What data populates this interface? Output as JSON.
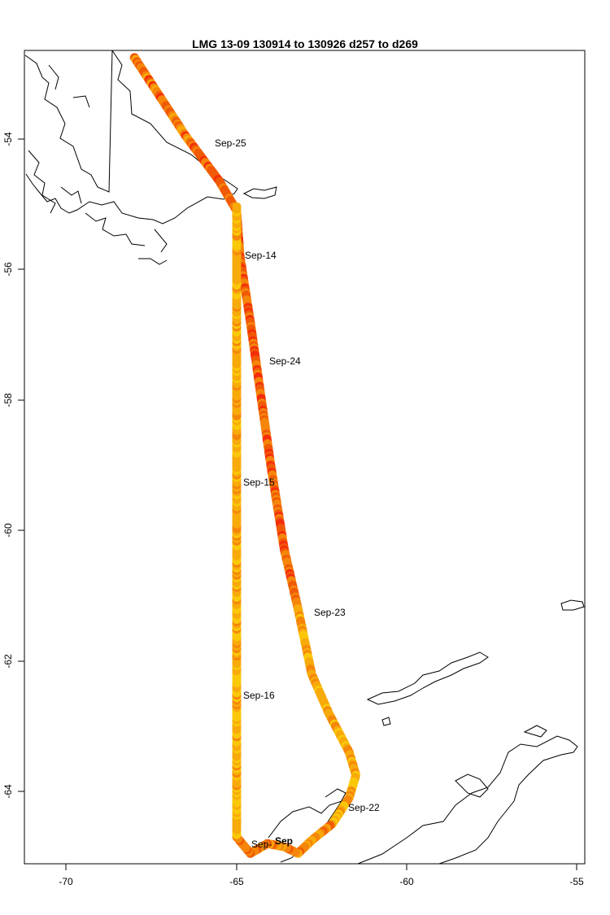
{
  "title": "LMG   13-09    130914 to 130926    d257 to d269",
  "axes": {
    "x_ticks": [
      "-70",
      "-65",
      "-60",
      "-55"
    ],
    "y_ticks": [
      "-54",
      "-56",
      "-58",
      "-60",
      "-62",
      "-64"
    ]
  },
  "date_labels": [
    {
      "text": "Sep-25"
    },
    {
      "text": "Sep-14"
    },
    {
      "text": "Sep-24"
    },
    {
      "text": "Sep-15"
    },
    {
      "text": "Sep-23"
    },
    {
      "text": "Sep-16"
    },
    {
      "text": "Sep-22"
    },
    {
      "text": "Sep-"
    },
    {
      "text": "Sep"
    }
  ],
  "colors": {
    "red": "#f42d0a",
    "dark_orange": "#f05a06",
    "orange": "#f5860a",
    "amber": "#f8aa0a",
    "yellow_orange": "#fbc808",
    "yellow": "#fff200"
  },
  "chart_data": {
    "type": "map",
    "xlim": [
      -71.3,
      -55.2
    ],
    "ylim": [
      -65.1,
      -52.6
    ],
    "track": [
      [
        -68.0,
        -52.75
      ],
      [
        -67.5,
        -53.15
      ],
      [
        -67.0,
        -53.55
      ],
      [
        -66.5,
        -53.95
      ],
      [
        -66.0,
        -54.3
      ],
      [
        -65.5,
        -54.65
      ],
      [
        -65.0,
        -55.1
      ],
      [
        -64.9,
        -55.8
      ],
      [
        -64.6,
        -56.8
      ],
      [
        -64.3,
        -57.9
      ],
      [
        -64.0,
        -59.0
      ],
      [
        -63.6,
        -60.3
      ],
      [
        -63.2,
        -61.2
      ],
      [
        -62.8,
        -62.2
      ],
      [
        -62.3,
        -62.8
      ],
      [
        -61.7,
        -63.4
      ],
      [
        -61.5,
        -63.75
      ],
      [
        -61.7,
        -64.1
      ],
      [
        -62.2,
        -64.5
      ],
      [
        -62.8,
        -64.75
      ],
      [
        -63.2,
        -64.95
      ],
      [
        -63.6,
        -64.85
      ],
      [
        -64.1,
        -64.8
      ],
      [
        -64.6,
        -64.95
      ],
      [
        -65.0,
        -64.7
      ],
      [
        -65.0,
        -63.5
      ],
      [
        -65.0,
        -62.0
      ],
      [
        -65.0,
        -60.5
      ],
      [
        -65.0,
        -59.0
      ],
      [
        -65.0,
        -57.6
      ],
      [
        -65.0,
        -56.2
      ],
      [
        -65.0,
        -55.0
      ]
    ]
  }
}
